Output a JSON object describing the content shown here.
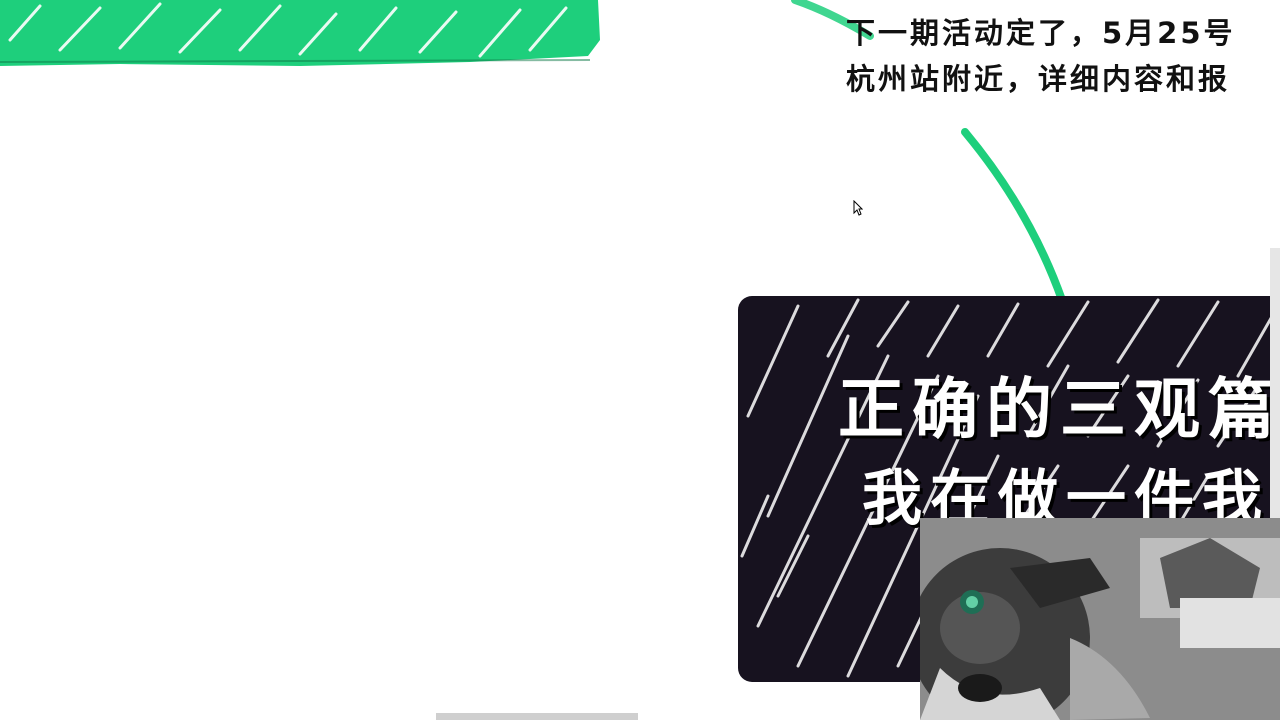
{
  "announcement": {
    "line1": "下一期活动定了，5月25号",
    "line2": "杭州站附近，详细内容和报"
  },
  "card": {
    "title": "正确的三观篇",
    "subtitle": "我在做一件我"
  },
  "colors": {
    "accent_green": "#1ecf7c",
    "card_background": "#17121f",
    "card_text": "#ffffff",
    "body_text": "#111111"
  },
  "icons": {
    "cursor": "mouse-pointer-icon"
  }
}
